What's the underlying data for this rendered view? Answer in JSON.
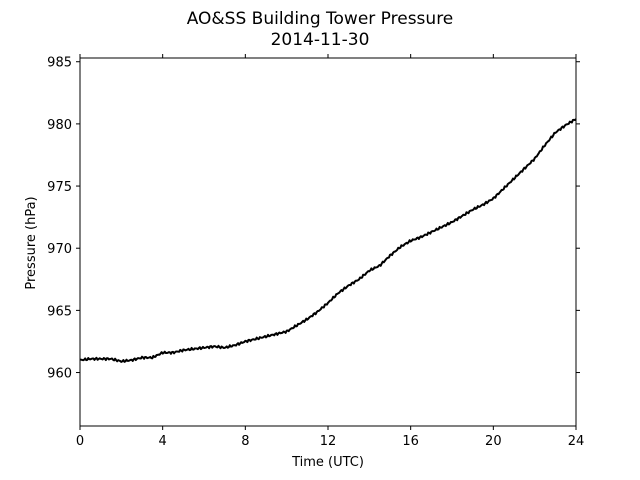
{
  "chart_data": {
    "type": "line",
    "title": "AO&SS Building Tower Pressure",
    "subtitle": "2014-11-30",
    "xlabel": "Time (UTC)",
    "ylabel": "Pressure (hPa)",
    "xlim": [
      0,
      24
    ],
    "ylim": [
      955.7,
      985.3
    ],
    "xticks": [
      0,
      4,
      8,
      12,
      16,
      20,
      24
    ],
    "yticks": [
      960,
      965,
      970,
      975,
      980,
      985
    ],
    "grid": false,
    "line_color": "#000000",
    "series": [
      {
        "x": [
          0,
          0.5,
          1,
          1.5,
          2,
          2.5,
          3,
          3.5,
          4,
          4.5,
          5,
          5.5,
          6,
          6.5,
          7,
          7.5,
          8,
          8.5,
          9,
          9.5,
          10,
          10.5,
          11,
          11.5,
          12,
          12.5,
          13,
          13.5,
          14,
          14.5,
          15,
          15.5,
          16,
          16.5,
          17,
          17.5,
          18,
          18.5,
          19,
          19.5,
          20,
          20.5,
          21,
          21.5,
          22,
          22.5,
          23,
          23.5,
          24
        ],
        "y": [
          961.0,
          961.1,
          961.1,
          961.1,
          960.9,
          961.0,
          961.2,
          961.2,
          961.6,
          961.6,
          961.8,
          961.9,
          962.0,
          962.1,
          962.0,
          962.2,
          962.5,
          962.7,
          962.9,
          963.1,
          963.3,
          963.8,
          964.3,
          964.9,
          965.6,
          966.4,
          967.0,
          967.5,
          968.2,
          968.6,
          969.4,
          970.1,
          970.6,
          970.9,
          971.3,
          971.7,
          972.1,
          972.6,
          973.1,
          973.5,
          974.0,
          974.8,
          975.6,
          976.4,
          977.2,
          978.3,
          979.3,
          979.9,
          980.4
        ]
      }
    ]
  }
}
